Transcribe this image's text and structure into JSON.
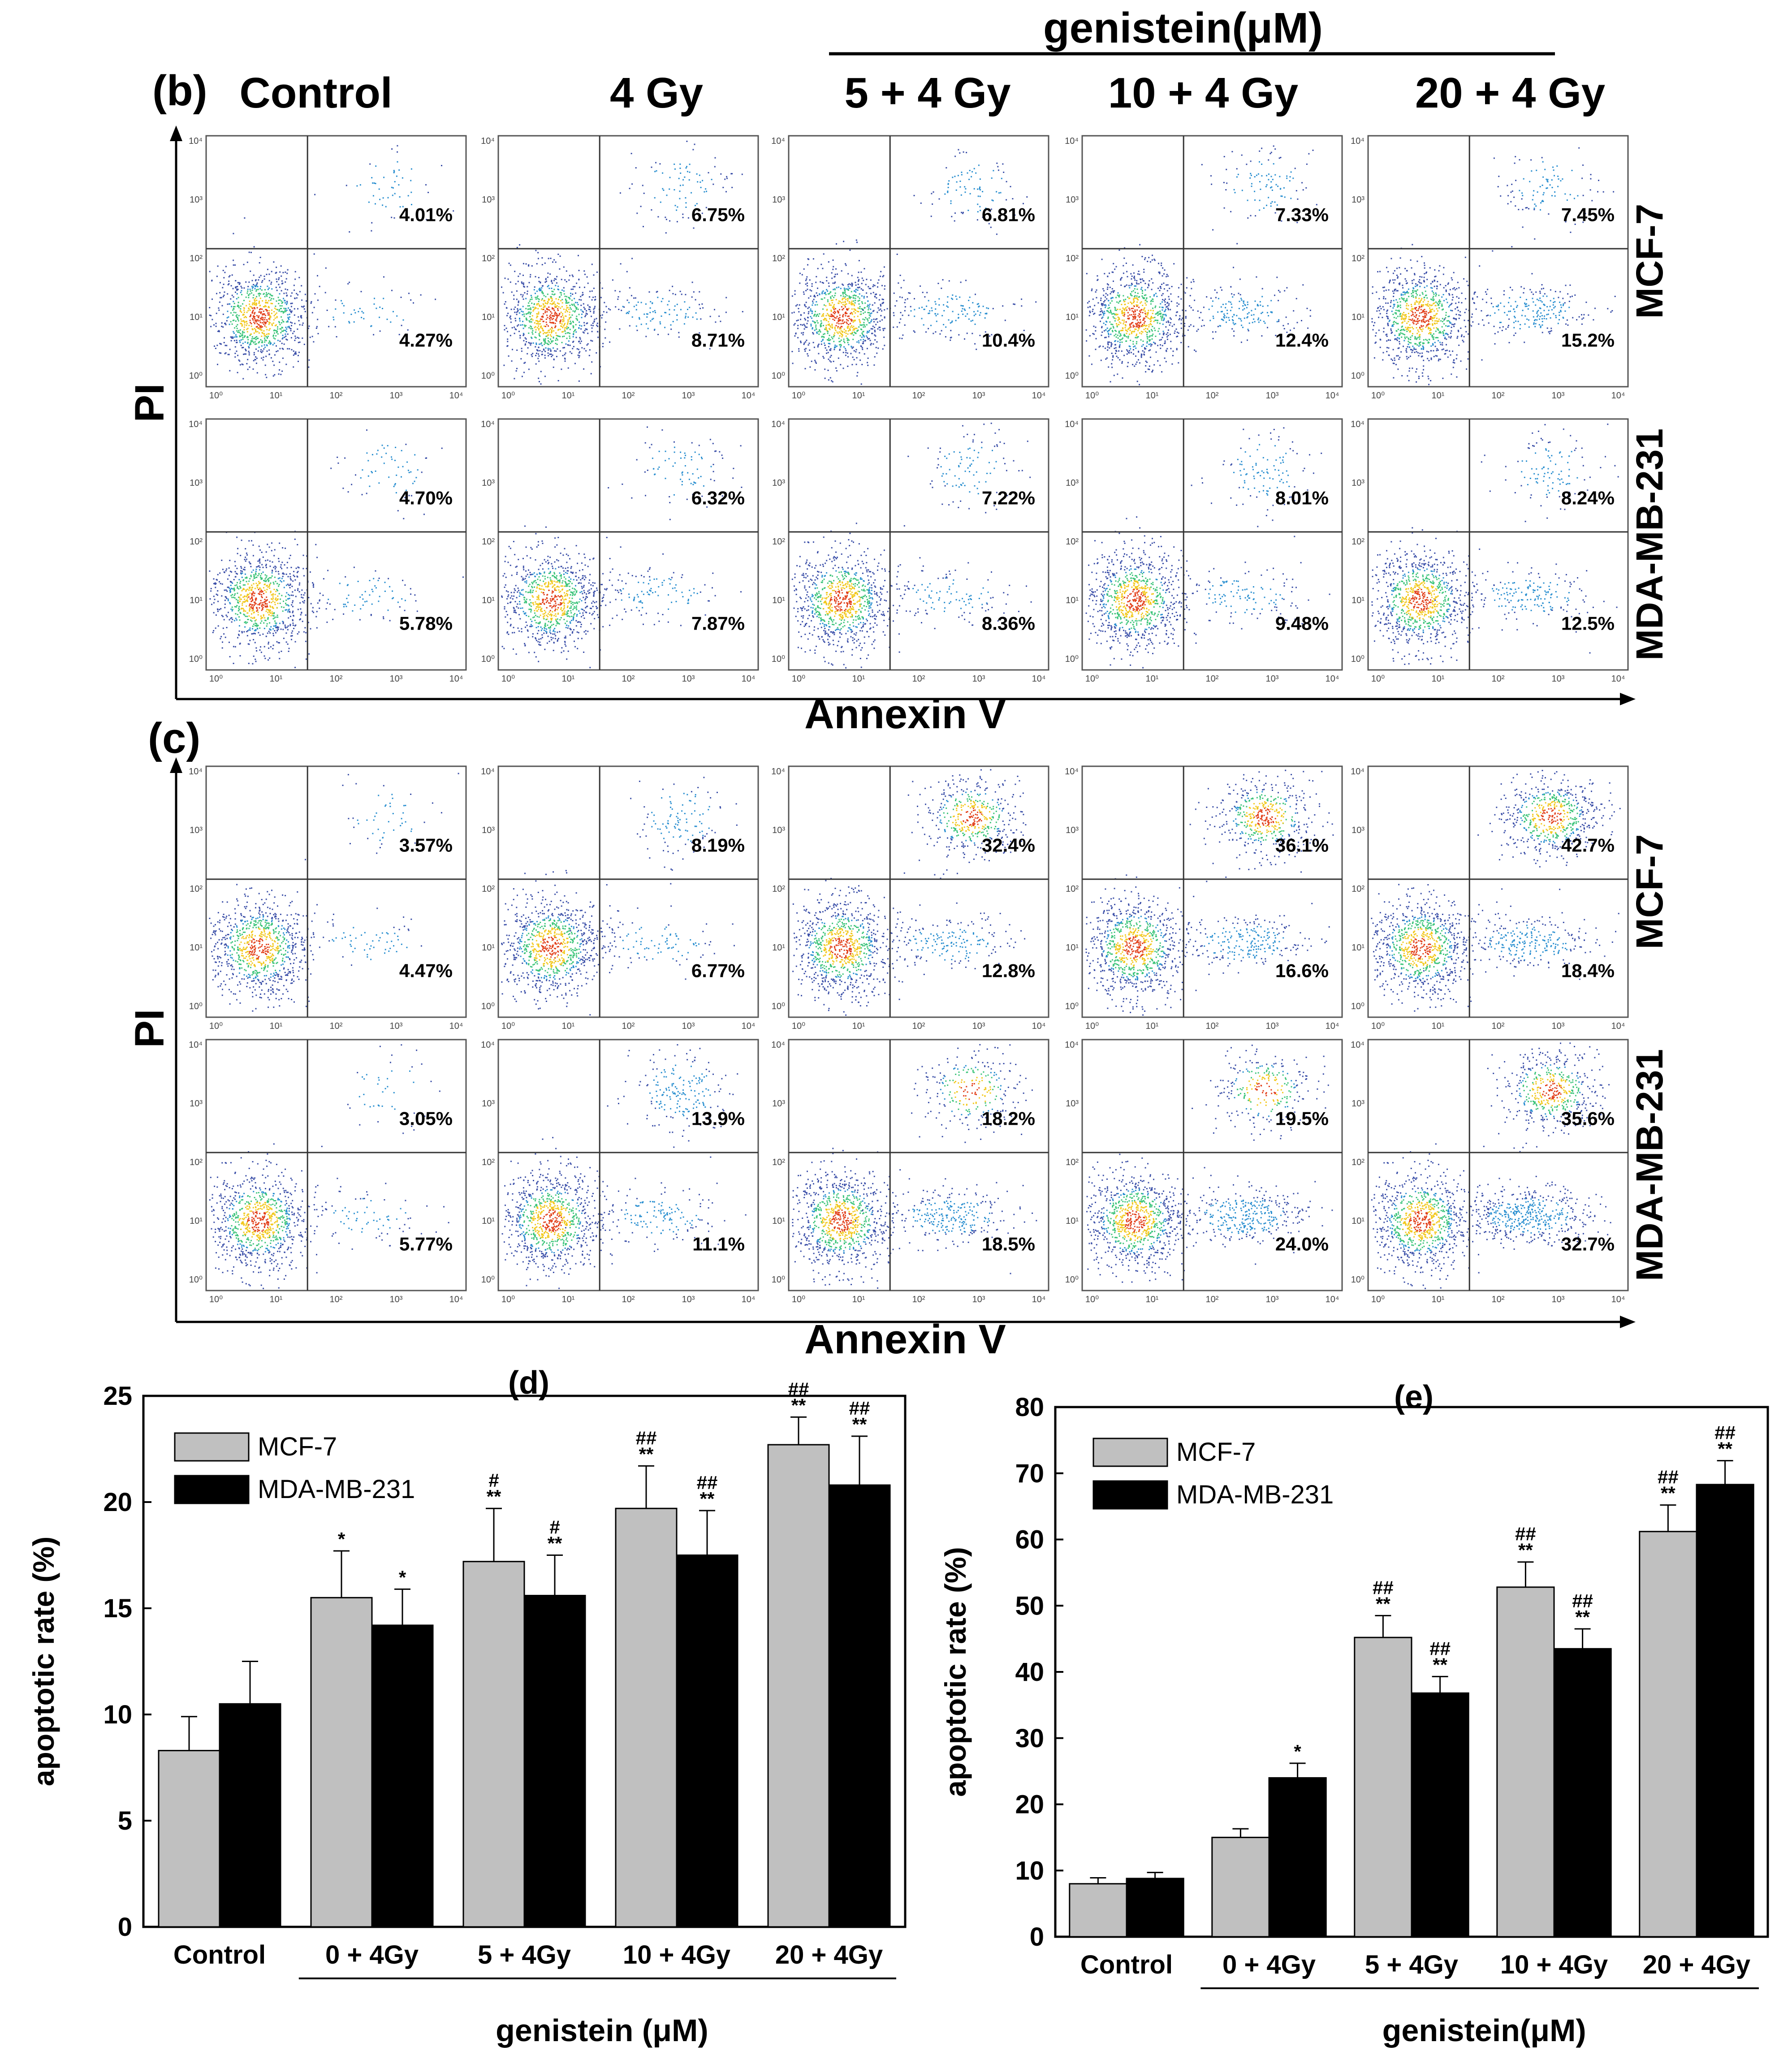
{
  "figure": {
    "top_header": "genistein(μM)",
    "column_labels": [
      "Control",
      "4 Gy",
      "5 + 4 Gy",
      "10 + 4 Gy",
      "20 + 4 Gy"
    ]
  },
  "chart_data": [
    {
      "type": "scatter",
      "panel": "(b)",
      "title": "",
      "xlabel": "Annexin V",
      "ylabel": "PI",
      "row_labels": [
        "MCF-7",
        "MDA-MB-231"
      ],
      "column_labels": [
        "Control",
        "4 Gy",
        "5 + 4 Gy",
        "10 + 4 Gy",
        "20 + 4 Gy"
      ],
      "axis_ticks": [
        "10⁰",
        "10¹",
        "10²",
        "10³",
        "10⁴"
      ],
      "rows": [
        {
          "cell_line": "MCF-7",
          "upper_right": [
            "4.01%",
            "6.75%",
            "6.81%",
            "7.33%",
            "7.45%"
          ],
          "lower_right": [
            "4.27%",
            "8.71%",
            "10.4%",
            "12.4%",
            "15.2%"
          ]
        },
        {
          "cell_line": "MDA-MB-231",
          "upper_right": [
            "4.70%",
            "6.32%",
            "7.22%",
            "8.01%",
            "8.24%"
          ],
          "lower_right": [
            "5.78%",
            "7.87%",
            "8.36%",
            "9.48%",
            "12.5%"
          ]
        }
      ]
    },
    {
      "type": "scatter",
      "panel": "(c)",
      "title": "",
      "xlabel": "Annexin V",
      "ylabel": "PI",
      "row_labels": [
        "MCF-7",
        "MDA-MB-231"
      ],
      "column_labels": [
        "Control",
        "4 Gy",
        "5 + 4 Gy",
        "10 + 4 Gy",
        "20 + 4 Gy"
      ],
      "axis_ticks": [
        "10⁰",
        "10¹",
        "10²",
        "10³",
        "10⁴"
      ],
      "rows": [
        {
          "cell_line": "MCF-7",
          "upper_right": [
            "3.57%",
            "8.19%",
            "32.4%",
            "36.1%",
            "42.7%"
          ],
          "lower_right": [
            "4.47%",
            "6.77%",
            "12.8%",
            "16.6%",
            "18.4%"
          ]
        },
        {
          "cell_line": "MDA-MB-231",
          "upper_right": [
            "3.05%",
            "13.9%",
            "18.2%",
            "19.5%",
            "35.6%"
          ],
          "lower_right": [
            "5.77%",
            "11.1%",
            "18.5%",
            "24.0%",
            "32.7%"
          ]
        }
      ]
    },
    {
      "type": "bar",
      "panel": "(d)",
      "title": "(d)",
      "xlabel": "genistein (μM)",
      "ylabel": "apoptotic rate (%)",
      "categories": [
        "Control",
        "0 + 4Gy",
        "5 + 4Gy",
        "10 + 4Gy",
        "20 + 4Gy"
      ],
      "ylim": [
        0,
        25
      ],
      "yticks": [
        0,
        5,
        10,
        15,
        20,
        25
      ],
      "legend_position": "top-left",
      "series": [
        {
          "name": "MCF-7",
          "color": "#c0c0c0",
          "values": [
            8.3,
            15.5,
            17.2,
            19.7,
            22.7
          ],
          "errors": [
            1.6,
            2.2,
            2.5,
            2.0,
            1.3
          ],
          "annotations": [
            "",
            "*",
            "#\n**",
            "##\n**",
            "##\n**"
          ]
        },
        {
          "name": "MDA-MB-231",
          "color": "#000000",
          "values": [
            10.5,
            14.2,
            15.6,
            17.5,
            20.8
          ],
          "errors": [
            2.0,
            1.7,
            1.9,
            2.1,
            2.3
          ],
          "annotations": [
            "",
            "*",
            "#\n**",
            "##\n**",
            "##\n**"
          ]
        }
      ]
    },
    {
      "type": "bar",
      "panel": "(e)",
      "title": "(e)",
      "xlabel": "genistein(μM)",
      "ylabel": "apoptotic rate (%)",
      "categories": [
        "Control",
        "0 + 4Gy",
        "5 + 4Gy",
        "10 + 4Gy",
        "20 + 4Gy"
      ],
      "ylim": [
        0,
        80
      ],
      "yticks": [
        0,
        10,
        20,
        30,
        40,
        50,
        60,
        70,
        80
      ],
      "legend_position": "top-left",
      "series": [
        {
          "name": "MCF-7",
          "color": "#c0c0c0",
          "values": [
            8.0,
            15.0,
            45.2,
            52.8,
            61.2
          ],
          "errors": [
            0.9,
            1.3,
            3.3,
            3.8,
            4.0
          ],
          "annotations": [
            "",
            "",
            "##\n**",
            "##\n**",
            "##\n**"
          ]
        },
        {
          "name": "MDA-MB-231",
          "color": "#000000",
          "values": [
            8.8,
            24.0,
            36.8,
            43.5,
            68.3
          ],
          "errors": [
            0.9,
            2.2,
            2.5,
            3.0,
            3.6
          ],
          "annotations": [
            "",
            "*",
            "##\n**",
            "##\n**",
            "##\n**"
          ]
        }
      ]
    }
  ]
}
